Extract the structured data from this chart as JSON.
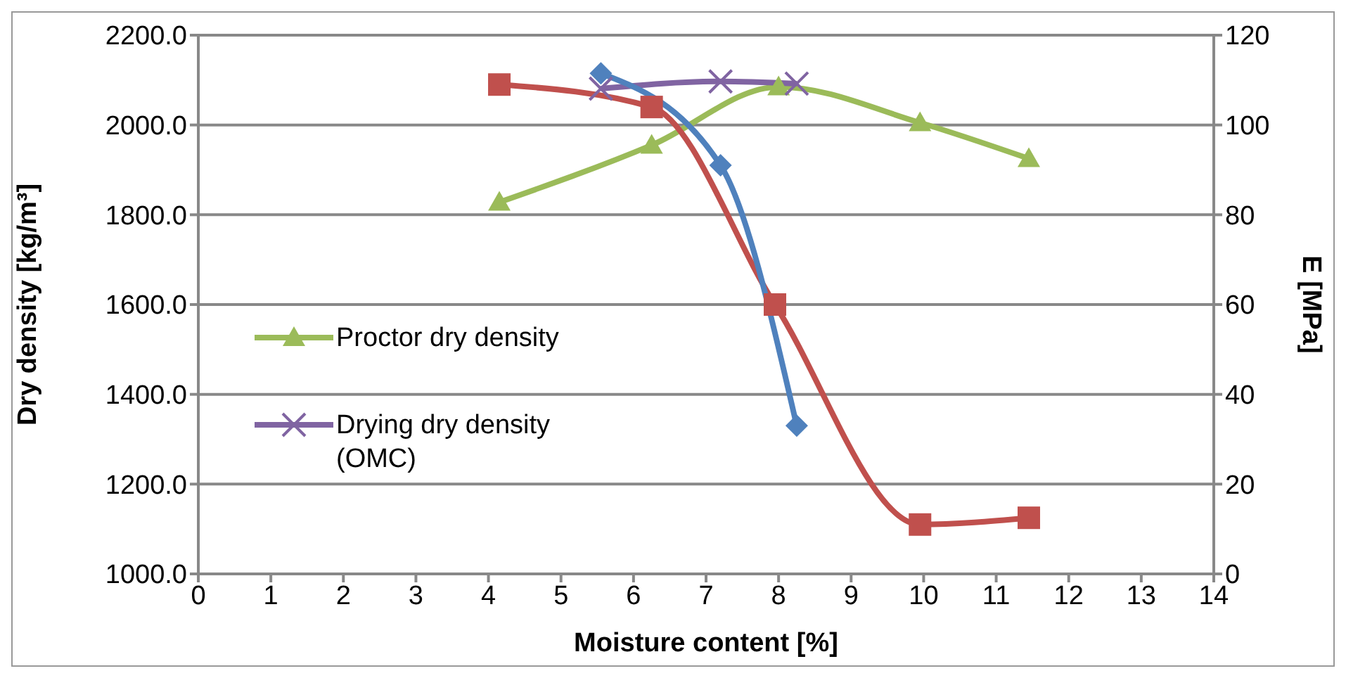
{
  "chart_data": {
    "type": "line",
    "xlabel": "Moisture content [%]",
    "ylabel": "Dry density [kg/m³]",
    "y2label": "E [MPa]",
    "xlim": [
      0,
      14
    ],
    "xticks": [
      0,
      1,
      2,
      3,
      4,
      5,
      6,
      7,
      8,
      9,
      10,
      11,
      12,
      13,
      14
    ],
    "ylim": [
      1000,
      2200
    ],
    "yticks": [
      {
        "value": 1000,
        "label": "1000.0"
      },
      {
        "value": 1200,
        "label": "1200.0"
      },
      {
        "value": 1400,
        "label": "1400.0"
      },
      {
        "value": 1600,
        "label": "1600.0"
      },
      {
        "value": 1800,
        "label": "1800.0"
      },
      {
        "value": 2000,
        "label": "2000.0"
      },
      {
        "value": 2200,
        "label": "2200.0"
      }
    ],
    "y2lim": [
      0,
      120
    ],
    "y2ticks": [
      0,
      20,
      40,
      60,
      80,
      100,
      120
    ],
    "grid": "y",
    "legend": "left",
    "series": [
      {
        "name": "Proctor dry density",
        "color": "#9bbb59",
        "marker": "triangle",
        "x": [
          4.15,
          6.25,
          8.0,
          9.95,
          11.45
        ],
        "values": [
          1828,
          1955,
          2085,
          2005,
          1925
        ]
      },
      {
        "name": "Drying dry density (OMC)",
        "color": "#8064a2",
        "marker": "cross",
        "x": [
          5.55,
          7.2,
          8.25
        ],
        "values": [
          2081,
          2097,
          2092
        ]
      },
      {
        "color": "#c0504d",
        "marker": "square",
        "axis": "y2",
        "x": [
          4.15,
          6.25,
          7.95,
          9.95,
          11.45
        ],
        "values": [
          109,
          104,
          60,
          11,
          12.5
        ]
      },
      {
        "color": "#4f81bd",
        "marker": "diamond",
        "axis": "y2",
        "x": [
          5.55,
          7.2,
          8.25
        ],
        "values": [
          111.5,
          91,
          33
        ]
      }
    ]
  }
}
